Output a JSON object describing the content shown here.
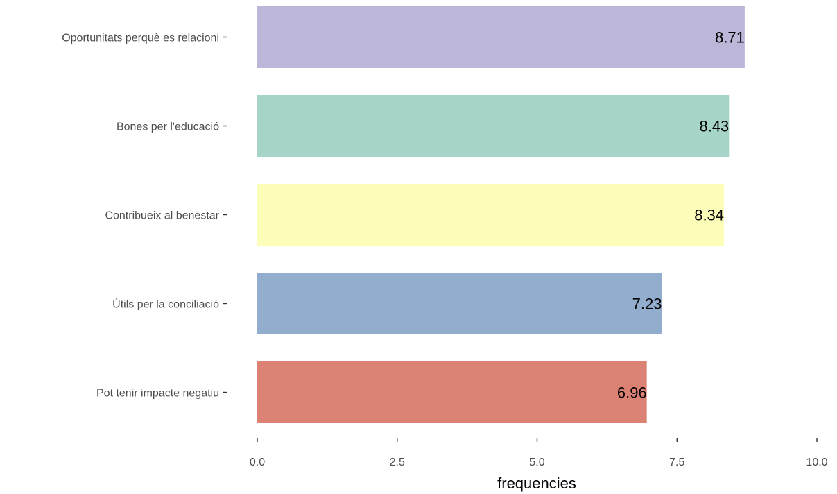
{
  "chart_data": {
    "type": "bar",
    "orientation": "horizontal",
    "categories": [
      "Oportunitats perquè es relacioni",
      "Bones per l'educació",
      "Contribueix al benestar",
      "Útils per la conciliació",
      "Pot tenir impacte negatiu"
    ],
    "values": [
      8.71,
      8.43,
      8.34,
      7.23,
      6.96
    ],
    "data_labels": [
      "8.71",
      "8.43",
      "8.34",
      "7.23",
      "6.96"
    ],
    "colors": [
      "#bcb7d9",
      "#a6d4c8",
      "#fcfdb9",
      "#93adcf",
      "#dc8274"
    ],
    "xlabel": "frequencies",
    "ylabel": "",
    "title": "",
    "xlim": [
      0,
      10
    ],
    "xticks": [
      0,
      2.5,
      5,
      7.5,
      10
    ],
    "xtick_labels": [
      "0.0",
      "2.5",
      "5.0",
      "7.5",
      "10.0"
    ],
    "grid": false,
    "legend": "none"
  }
}
